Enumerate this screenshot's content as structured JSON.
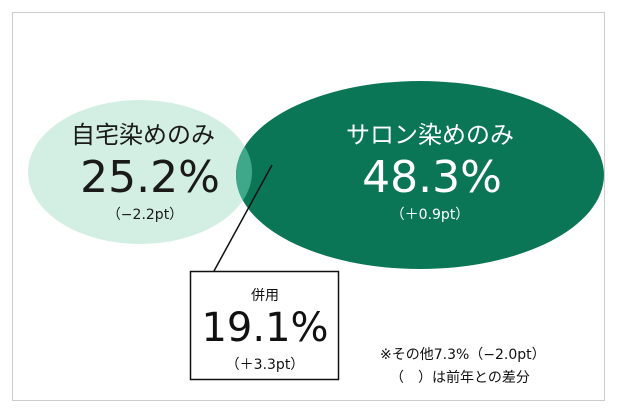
{
  "home_only": {
    "label": "自宅染めのみ",
    "value": "25.2%",
    "change": "（−2.2pt）"
  },
  "salon_only": {
    "label": "サロン染めのみ",
    "value": "48.3%",
    "change": "（＋0.9pt）"
  },
  "both": {
    "label": "併用",
    "value": "19.1%",
    "change": "（＋3.3pt）"
  },
  "notes": [
    "※その他7.3%（−2.0pt）",
    "（　）は前年との差分"
  ]
}
